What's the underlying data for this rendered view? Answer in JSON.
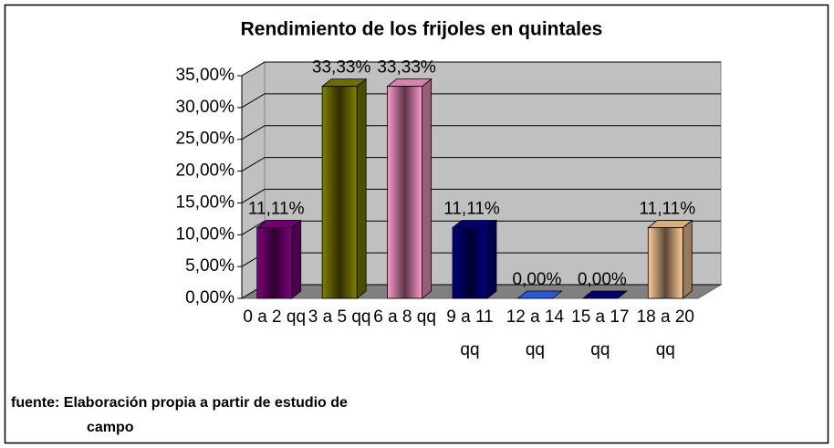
{
  "chart_data": {
    "type": "bar3d",
    "title": "Rendimiento de los frijoles en quintales",
    "categories": [
      "0 a 2 qq",
      "3 a 5 qq",
      "6 a 8 qq",
      "9 a 11 qq",
      "12 a 14 qq",
      "15 a 17 qq",
      "18 a 20 qq"
    ],
    "values": [
      11.11,
      33.33,
      33.33,
      11.11,
      0,
      0,
      11.11
    ],
    "value_labels": [
      "11,11%",
      "33,33%",
      "33,33%",
      "11,11%",
      "0,00%",
      "0,00%",
      "11,11%"
    ],
    "colors": [
      "#800080",
      "#808000",
      "#ff99cc",
      "#000080",
      "#3366ff",
      "#000080",
      "#ffcc99"
    ],
    "ylim": [
      0,
      35
    ],
    "yticks": [
      {
        "value": 0,
        "label": "0,00%"
      },
      {
        "value": 5,
        "label": "5,00%"
      },
      {
        "value": 10,
        "label": "10,00%"
      },
      {
        "value": 15,
        "label": "15,00%"
      },
      {
        "value": 20,
        "label": "20,00%"
      },
      {
        "value": 25,
        "label": "25,00%"
      },
      {
        "value": 30,
        "label": "30,00%"
      },
      {
        "value": 35,
        "label": "35,00%"
      }
    ],
    "grid": true,
    "note": "fuente: Elaboración propia a partir de estudio de campo"
  }
}
